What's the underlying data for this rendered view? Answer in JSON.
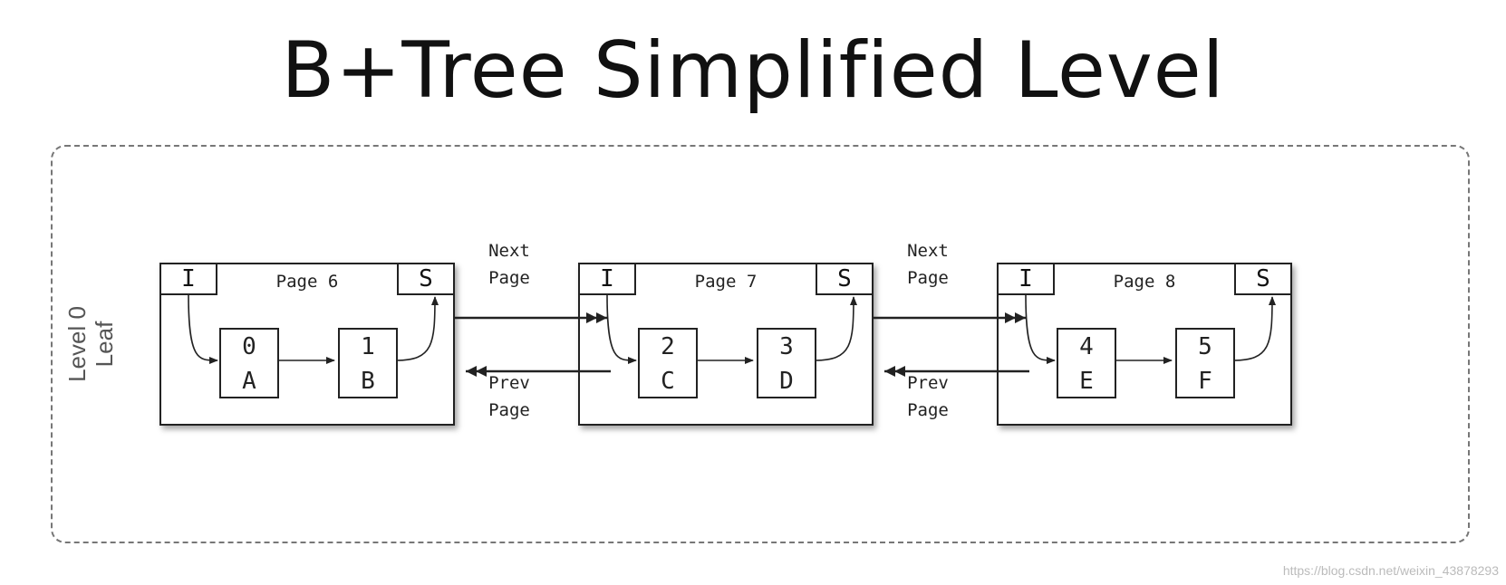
{
  "title": "B+Tree Simplified Level",
  "level_label": {
    "line1": "Level 0",
    "line2": "Leaf"
  },
  "pages": [
    {
      "title": "Page 6",
      "left_tag": "I",
      "right_tag": "S",
      "records": [
        {
          "key": "0",
          "value": "A"
        },
        {
          "key": "1",
          "value": "B"
        }
      ]
    },
    {
      "title": "Page 7",
      "left_tag": "I",
      "right_tag": "S",
      "records": [
        {
          "key": "2",
          "value": "C"
        },
        {
          "key": "3",
          "value": "D"
        }
      ]
    },
    {
      "title": "Page 8",
      "left_tag": "I",
      "right_tag": "S",
      "records": [
        {
          "key": "4",
          "value": "E"
        },
        {
          "key": "5",
          "value": "F"
        }
      ]
    }
  ],
  "links": [
    {
      "next_line1": "Next",
      "next_line2": "Page",
      "prev_line1": "Prev",
      "prev_line2": "Page"
    },
    {
      "next_line1": "Next",
      "next_line2": "Page",
      "prev_line1": "Prev",
      "prev_line2": "Page"
    }
  ],
  "watermark": "https://blog.csdn.net/weixin_43878293"
}
